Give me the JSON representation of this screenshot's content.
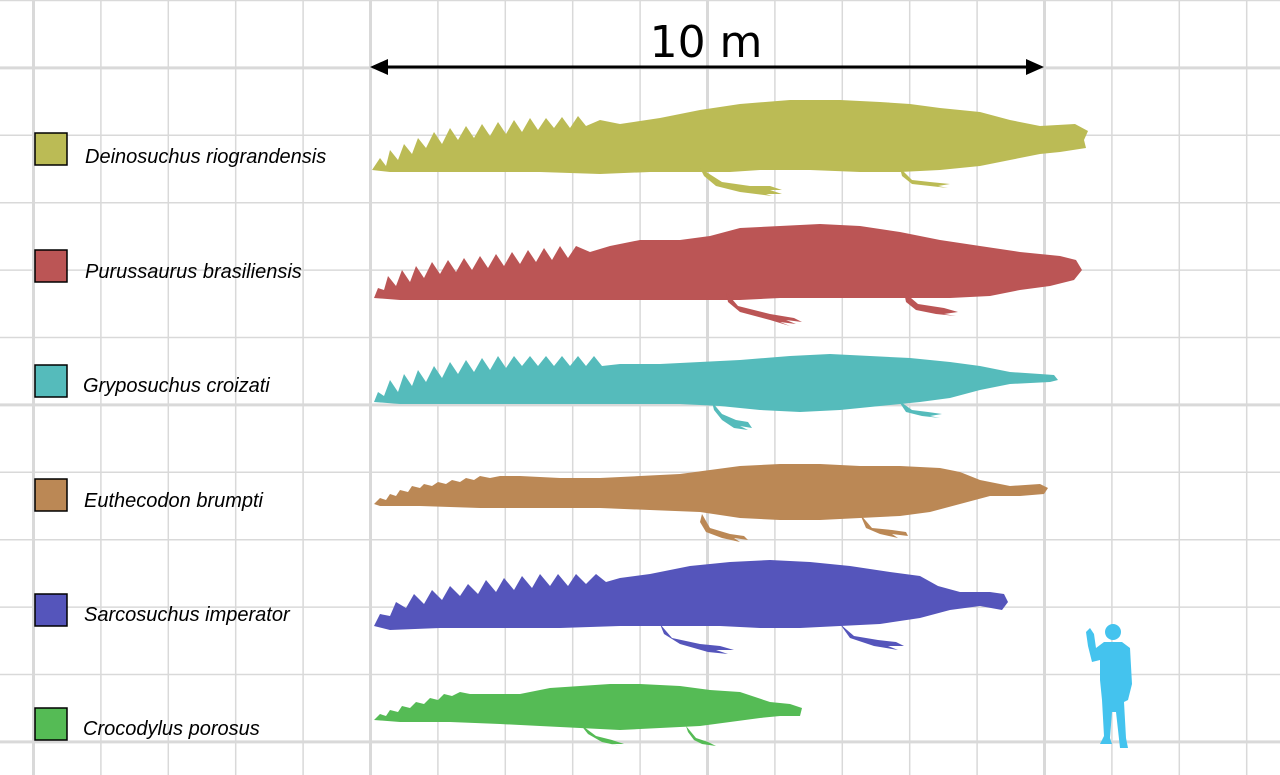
{
  "scale": {
    "label": "10 m"
  },
  "species": [
    {
      "name": "Deinosuchus riograndensis",
      "color": "#bbbb55"
    },
    {
      "name": "Purussaurus brasiliensis",
      "color": "#bb5555"
    },
    {
      "name": "Gryposuchus croizati",
      "color": "#55bbbb"
    },
    {
      "name": "Euthecodon brumpti",
      "color": "#bb8855"
    },
    {
      "name": "Sarcosuchus imperator",
      "color": "#5555bb"
    },
    {
      "name": "Crocodylus porosus",
      "color": "#55bb55"
    }
  ],
  "human": {
    "color": "#44c3ee",
    "icon": "human-silhouette-icon"
  }
}
